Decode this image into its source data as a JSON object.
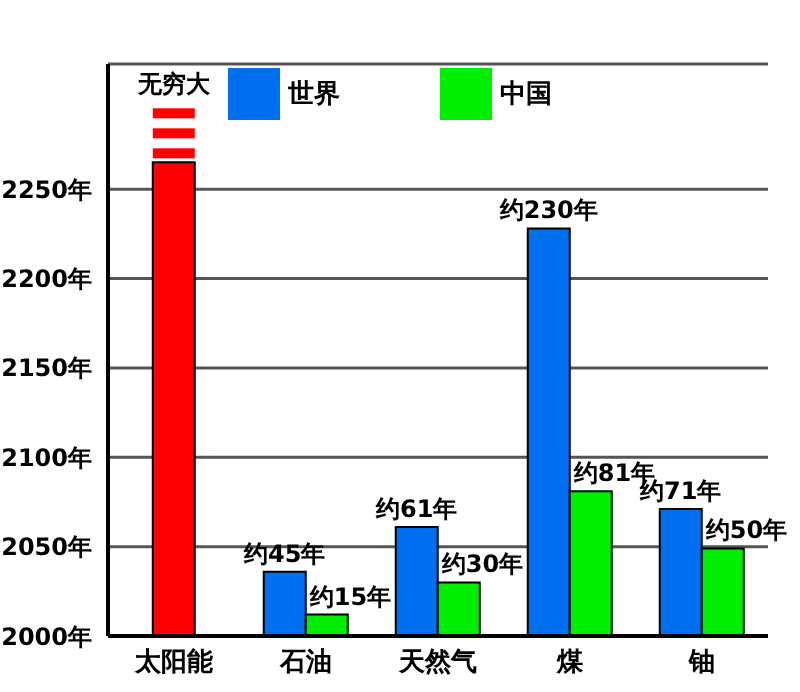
{
  "chart_data": {
    "type": "bar",
    "categories": [
      "太阳能",
      "石油",
      "天然气",
      "煤",
      "铀"
    ],
    "series": [
      {
        "color": "#ff0000",
        "values": [
          2265,
          null,
          null,
          null,
          null
        ],
        "value_labels": [
          "无穷大",
          null,
          null,
          null,
          null
        ]
      },
      {
        "name": "世界",
        "color": "#0070f0",
        "values": [
          null,
          2036,
          2061,
          2228,
          2071
        ],
        "value_labels": [
          null,
          "约45年",
          "约61年",
          "约230年",
          "约71年"
        ]
      },
      {
        "name": "中国",
        "color": "#00ee00",
        "values": [
          null,
          2012,
          2030,
          2081,
          2049
        ],
        "value_labels": [
          null,
          "约15年",
          "约30年",
          "约81年",
          "约50年"
        ]
      }
    ],
    "ylim": [
      2000,
      2320
    ],
    "yticks": [
      {
        "value": 2000,
        "label": "2000年"
      },
      {
        "value": 2050,
        "label": "2050年"
      },
      {
        "value": 2100,
        "label": "2100年"
      },
      {
        "value": 2150,
        "label": "2150年"
      },
      {
        "value": 2200,
        "label": "2200年"
      },
      {
        "value": 2250,
        "label": "2250年"
      }
    ],
    "grid": "y",
    "legend": "top"
  }
}
